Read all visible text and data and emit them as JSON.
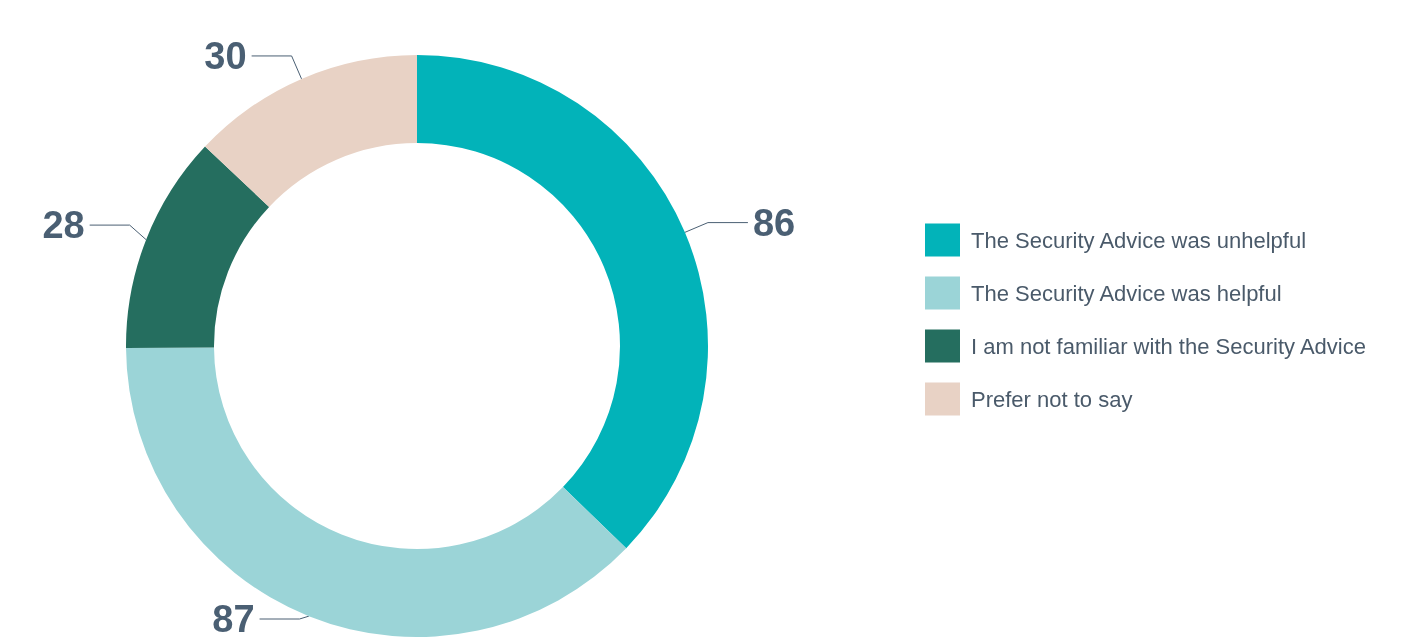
{
  "chart_data": {
    "type": "donut",
    "categories": [
      "The Security Advice was unhelpful",
      "The Security Advice was helpful",
      "I am not familiar with the Security Advice",
      "Prefer not to say"
    ],
    "values": [
      86,
      87,
      28,
      30
    ],
    "colors": [
      "#02b3b9",
      "#9bd4d7",
      "#256e5f",
      "#e8d2c5"
    ],
    "data_labels": true,
    "legend": "right"
  }
}
